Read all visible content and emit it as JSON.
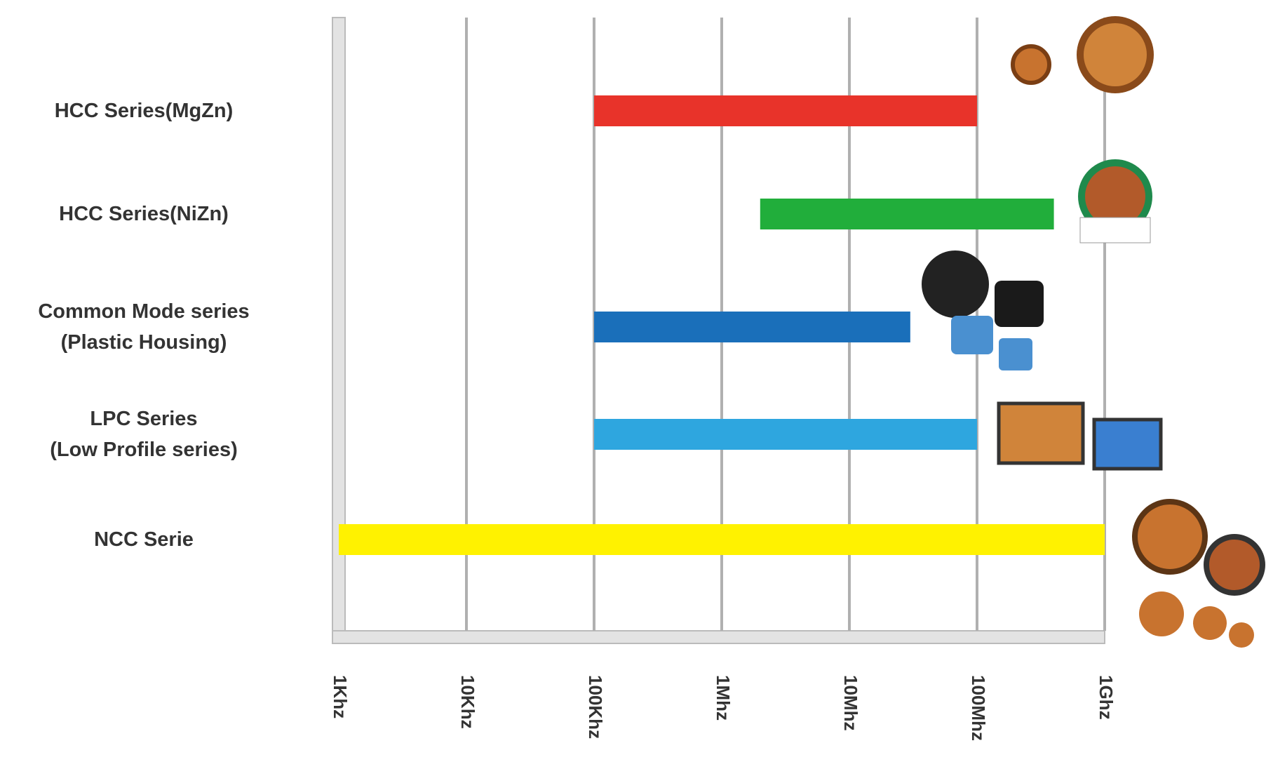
{
  "chart_data": {
    "type": "range-bar",
    "categories": [
      "HCC Series(MgZn)",
      "HCC Series(NiZn)",
      "Common Mode series\n(Plastic Housing)",
      "LPC Series\n(Low Profile series)",
      "NCC Serie"
    ],
    "values": [
      [
        100000,
        100000000
      ],
      [
        2000000,
        400000000
      ],
      [
        100000,
        30000000
      ],
      [
        100000,
        100000000
      ],
      [
        1000,
        1000000000
      ]
    ],
    "colors": [
      "#e8332a",
      "#21ae3b",
      "#1a6fba",
      "#2ea6df",
      "#fff200"
    ],
    "xscale": "log",
    "xlim": [
      1000,
      1000000000
    ],
    "xticks": [
      {
        "value": 1000,
        "label": "1Khz"
      },
      {
        "value": 10000,
        "label": "10Khz"
      },
      {
        "value": 100000,
        "label": "100Khz"
      },
      {
        "value": 1000000,
        "label": "1Mhz"
      },
      {
        "value": 10000000,
        "label": "10Mhz"
      },
      {
        "value": 100000000,
        "label": "100Mhz"
      },
      {
        "value": 1000000000,
        "label": "1Ghz"
      }
    ],
    "grid": true
  }
}
